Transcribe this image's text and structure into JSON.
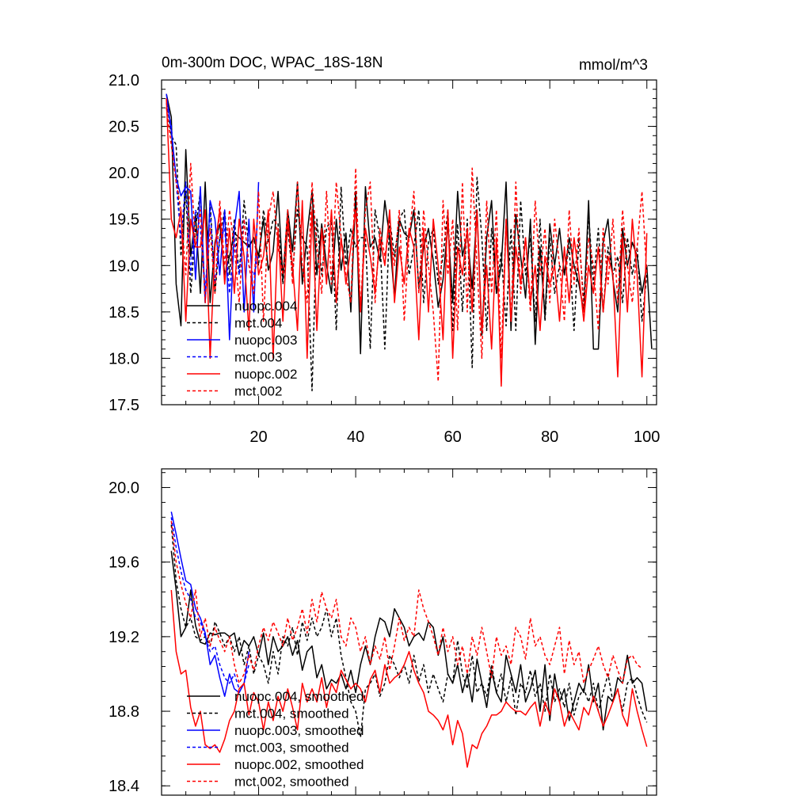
{
  "chart_data": [
    {
      "type": "line",
      "title": "0m-300m DOC, WPAC_18S-18N",
      "units": "mmol/m^3",
      "xlim": [
        0,
        102
      ],
      "ylim": [
        17.5,
        21.0
      ],
      "xticks": [
        20,
        40,
        60,
        80,
        100
      ],
      "yticks": [
        17.5,
        18.0,
        18.5,
        19.0,
        19.5,
        20.0,
        20.5,
        21.0
      ],
      "ytick_labels": [
        "17.5",
        "18.0",
        "18.5",
        "19.0",
        "19.5",
        "20.0",
        "20.5",
        "21.0"
      ],
      "legend": "bottom-left",
      "series": [
        {
          "name": "nuopc.004",
          "color": "#000000",
          "dash": false,
          "x_start": 1,
          "values": [
            20.85,
            20.6,
            18.8,
            18.35,
            20.25,
            19.1,
            19.55,
            18.7,
            19.9,
            18.6,
            19.25,
            19.45,
            18.9,
            19.1,
            19.35,
            19.3,
            19.25,
            19.2,
            19.3,
            19.1,
            19.5,
            18.95,
            19.15,
            19.8,
            18.85,
            19.6,
            19.15,
            19.9,
            18.8,
            19.35,
            19.8,
            18.9,
            19.45,
            19.0,
            18.7,
            19.5,
            18.95,
            19.35,
            18.5,
            19.8,
            18.05,
            19.85,
            19.2,
            19.3,
            19.05,
            19.7,
            19.3,
            18.65,
            19.5,
            19.35,
            19.3,
            19.6,
            18.75,
            19.2,
            19.4,
            19.05,
            18.55,
            18.85,
            19.45,
            18.6,
            19.8,
            19.1,
            19.35,
            18.75,
            19.6,
            18.25,
            19.3,
            19.7,
            18.7,
            19.0,
            19.9,
            18.3,
            19.55,
            19.1,
            18.65,
            19.5,
            18.15,
            19.2,
            18.45,
            19.45,
            19.0,
            19.4,
            18.9,
            19.3,
            19.0,
            18.8,
            18.5,
            19.7,
            18.1,
            18.1,
            19.25,
            19.5,
            18.85,
            18.5,
            19.4,
            19.0,
            19.25,
            19.1,
            18.7,
            19.0,
            18.1
          ]
        },
        {
          "name": "mct.004",
          "color": "#000000",
          "dash": true,
          "x_start": 1,
          "values": [
            20.8,
            20.4,
            20.3,
            19.1,
            19.8,
            18.7,
            19.4,
            19.8,
            18.6,
            19.7,
            18.7,
            19.3,
            19.6,
            18.9,
            19.5,
            18.9,
            19.7,
            19.2,
            19.3,
            19.0,
            19.6,
            19.25,
            19.5,
            19.45,
            18.8,
            19.4,
            18.9,
            19.6,
            19.3,
            19.2,
            17.65,
            19.5,
            18.9,
            19.4,
            19.5,
            18.3,
            19.85,
            19.0,
            19.4,
            19.2,
            19.3,
            19.3,
            18.1,
            19.6,
            19.3,
            18.1,
            19.5,
            19.1,
            19.5,
            19.6,
            18.9,
            19.2,
            19.6,
            18.6,
            19.25,
            19.4,
            18.8,
            19.1,
            19.6,
            18.3,
            19.45,
            18.5,
            19.5,
            17.9,
            19.95,
            19.3,
            18.3,
            19.4,
            18.7,
            19.15,
            18.35,
            19.4,
            18.3,
            19.7,
            18.9,
            19.3,
            18.4,
            19.5,
            18.4,
            19.3,
            18.7,
            19.0,
            18.9,
            19.2,
            18.3,
            19.3,
            18.6,
            19.55,
            18.8,
            19.4,
            18.5,
            19.2,
            18.9,
            19.1,
            18.6,
            19.3,
            18.9,
            19.2,
            18.4,
            18.9
          ]
        },
        {
          "name": "nuopc.003",
          "color": "#0000ff",
          "dash": false,
          "x_start": 1,
          "values": [
            20.85,
            20.45,
            19.95,
            19.75,
            19.85,
            19.8,
            18.85,
            19.85,
            18.6,
            19.7,
            19.5,
            18.9,
            19.6,
            18.2,
            19.4,
            19.8,
            18.5,
            19.5,
            18.5,
            19.9
          ]
        },
        {
          "name": "mct.003",
          "color": "#0000ff",
          "dash": true,
          "x_start": 1,
          "values": [
            20.75,
            20.5,
            19.9,
            19.3,
            19.9,
            18.9,
            19.6,
            19.4,
            18.7,
            19.6,
            18.8,
            19.3,
            19.4,
            18.7,
            19.3,
            18.9,
            19.5,
            19.0,
            18.9,
            19.1
          ]
        },
        {
          "name": "nuopc.002",
          "color": "#ff0000",
          "dash": false,
          "x_start": 1,
          "values": [
            20.8,
            19.5,
            19.3,
            19.6,
            18.4,
            19.5,
            19.2,
            19.2,
            19.6,
            18.0,
            19.2,
            19.6,
            18.8,
            19.4,
            18.7,
            19.5,
            19.1,
            18.3,
            19.5,
            18.9,
            19.1,
            19.6,
            18.0,
            19.4,
            18.4,
            19.5,
            19.0,
            18.3,
            19.7,
            18.0,
            19.6,
            18.3,
            19.4,
            18.8,
            19.6,
            18.6,
            19.3,
            18.8,
            19.2,
            19.6,
            18.5,
            19.4,
            19.1,
            18.7,
            19.3,
            19.0,
            19.6,
            18.6,
            19.2,
            18.8,
            19.4,
            19.2,
            18.2,
            19.4,
            18.5,
            19.5,
            19.0,
            18.2,
            19.6,
            18.0,
            19.2,
            18.9,
            19.4,
            18.5,
            19.6,
            18.3,
            19.0,
            18.1,
            19.3,
            17.7,
            19.5,
            18.4,
            19.2,
            18.8,
            19.3,
            18.6,
            19.0,
            18.3,
            19.1,
            18.8,
            19.0,
            18.4,
            19.2,
            18.6,
            19.3,
            18.9,
            18.4,
            19.0,
            18.7,
            19.2,
            18.5,
            19.1,
            18.9,
            17.8,
            19.3,
            18.5,
            19.5,
            18.9,
            17.8,
            19.35
          ]
        },
        {
          "name": "mct.002",
          "color": "#ff0000",
          "dash": true,
          "x_start": 1,
          "values": [
            20.7,
            20.3,
            19.9,
            19.6,
            18.9,
            20.1,
            19.2,
            19.6,
            18.6,
            19.4,
            18.7,
            19.7,
            19.0,
            19.6,
            19.2,
            18.6,
            19.5,
            19.0,
            18.7,
            19.8,
            18.4,
            19.5,
            19.8,
            19.2,
            18.9,
            19.6,
            18.8,
            19.9,
            19.0,
            18.6,
            19.9,
            19.2,
            18.7,
            19.8,
            18.8,
            19.9,
            19.3,
            18.9,
            18.6,
            20.05,
            18.5,
            19.6,
            19.9,
            18.6,
            19.4,
            19.1,
            19.4,
            19.0,
            19.6,
            18.4,
            19.3,
            19.8,
            18.7,
            19.6,
            19.0,
            18.5,
            17.75,
            19.7,
            18.9,
            19.5,
            18.3,
            19.9,
            18.5,
            20.05,
            19.0,
            18.0,
            19.7,
            18.7,
            19.6,
            18.0,
            19.5,
            18.4,
            19.9,
            18.7,
            19.3,
            18.5,
            19.7,
            18.9,
            19.4,
            18.6,
            19.5,
            19.0,
            18.4,
            19.6,
            18.8,
            19.4,
            18.5,
            19.3,
            19.0,
            18.3,
            19.4,
            18.8,
            19.5,
            18.6,
            19.6,
            19.0,
            18.6,
            19.2,
            19.8,
            18.9
          ]
        }
      ]
    },
    {
      "type": "line",
      "title": "",
      "xlim": [
        0,
        102
      ],
      "ylim": [
        18.35,
        20.1
      ],
      "xticks": [
        20,
        40,
        60,
        80,
        100
      ],
      "yticks": [
        18.4,
        18.8,
        19.2,
        19.6,
        20.0
      ],
      "ytick_labels": [
        "18.4",
        "18.8",
        "19.2",
        "19.6",
        "20.0"
      ],
      "legend": "bottom-left",
      "series": [
        {
          "name": "nuopc.004, smoothed",
          "color": "#000000",
          "dash": false,
          "x_start": 2,
          "values": [
            19.66,
            19.45,
            19.2,
            19.25,
            19.45,
            19.26,
            19.17,
            19.16,
            19.22,
            19.21,
            19.22,
            19.22,
            19.2,
            19.22,
            19.1,
            19.18,
            19.15,
            19.2,
            19.1,
            19.22,
            19.05,
            19.2,
            19.12,
            19.15,
            19.2,
            19.1,
            19.18,
            19.02,
            19.12,
            19.15,
            18.98,
            19.05,
            18.92,
            18.97,
            18.95,
            19.0,
            18.92,
            19.02,
            18.9,
            19.05,
            19.15,
            19.05,
            19.2,
            19.3,
            19.28,
            19.2,
            19.35,
            19.3,
            19.25,
            19.15,
            19.2,
            19.22,
            19.18,
            19.28,
            19.25,
            19.1,
            19.2,
            19.0,
            18.95,
            19.05,
            18.9,
            19.0,
            18.85,
            19.08,
            18.95,
            18.82,
            19.02,
            18.9,
            18.85,
            19.1,
            19.0,
            18.9,
            19.05,
            18.85,
            18.92,
            19.02,
            18.8,
            19.05,
            18.75,
            19.0,
            18.85,
            18.92,
            18.75,
            18.85,
            18.95,
            18.9,
            19.05,
            18.85,
            18.95,
            18.7,
            18.88,
            18.85,
            18.98,
            18.95,
            19.1,
            18.95,
            18.98,
            18.95,
            18.8
          ]
        },
        {
          "name": "mct.004, smoothed",
          "color": "#000000",
          "dash": true,
          "x_start": 2,
          "values": [
            19.8,
            19.5,
            19.35,
            19.25,
            19.3,
            19.2,
            19.18,
            19.2,
            19.15,
            19.28,
            19.22,
            19.15,
            19.2,
            19.12,
            19.2,
            19.05,
            19.15,
            19.0,
            19.1,
            19.05,
            18.95,
            19.12,
            19.0,
            19.2,
            19.15,
            19.25,
            19.1,
            19.28,
            19.18,
            19.3,
            19.2,
            19.25,
            19.35,
            19.2,
            19.3,
            19.1,
            18.98,
            18.85,
            18.8,
            18.66,
            18.92,
            18.95,
            19.0,
            18.88,
            18.95,
            19.1,
            19.05,
            18.98,
            19.05,
            18.95,
            19.1,
            18.96,
            19.05,
            18.9,
            19.0,
            18.92,
            18.85,
            19.0,
            18.95,
            19.18,
            19.0,
            18.92,
            19.1,
            18.9,
            18.95,
            18.88,
            19.05,
            18.9,
            19.0,
            18.85,
            18.98,
            18.78,
            18.95,
            18.9,
            19.02,
            18.88,
            18.95,
            18.8,
            19.0,
            18.85,
            18.92,
            18.82,
            18.95,
            18.78,
            18.88,
            18.92,
            18.85,
            18.95,
            18.8,
            18.9,
            19.0,
            18.85,
            18.92,
            18.8,
            18.95,
            18.98,
            18.88,
            18.8,
            18.74
          ]
        },
        {
          "name": "nuopc.003, smoothed",
          "color": "#0000ff",
          "dash": false,
          "x_start": 2,
          "values": [
            19.87,
            19.75,
            19.62,
            19.5,
            19.48,
            19.35,
            19.3,
            19.22,
            19.05,
            19.1,
            18.98,
            18.88,
            19.0,
            18.92,
            18.9,
            18.95,
            19.12
          ]
        },
        {
          "name": "mct.003, smoothed",
          "color": "#0000ff",
          "dash": true,
          "x_start": 2,
          "values": [
            19.84,
            19.68,
            19.55,
            19.45,
            19.4,
            19.3,
            19.28,
            19.2,
            19.12,
            19.15,
            19.05,
            18.98,
            18.95,
            19.0,
            18.92,
            18.95,
            19.05
          ]
        },
        {
          "name": "nuopc.002, smoothed",
          "color": "#ff0000",
          "dash": false,
          "x_start": 2,
          "values": [
            19.45,
            19.12,
            19.0,
            19.02,
            18.82,
            18.72,
            18.8,
            18.62,
            18.6,
            18.62,
            18.58,
            18.65,
            18.75,
            18.8,
            18.92,
            18.95,
            18.78,
            18.9,
            18.85,
            18.7,
            18.85,
            18.75,
            18.88,
            18.8,
            18.92,
            18.82,
            18.7,
            18.95,
            18.85,
            18.92,
            18.85,
            18.98,
            18.82,
            18.95,
            18.9,
            19.02,
            18.97,
            18.92,
            18.95,
            18.92,
            18.85,
            18.97,
            19.02,
            18.9,
            19.05,
            18.95,
            18.98,
            19.0,
            19.05,
            19.12,
            19.02,
            18.95,
            18.9,
            18.8,
            18.78,
            18.75,
            18.7,
            18.78,
            18.62,
            18.75,
            18.68,
            18.5,
            18.62,
            18.6,
            18.68,
            18.72,
            18.78,
            18.78,
            18.8,
            18.85,
            18.82,
            18.8,
            18.8,
            18.78,
            18.82,
            18.85,
            18.72,
            18.85,
            18.78,
            18.92,
            18.85,
            18.72,
            18.8,
            18.75,
            18.7,
            18.82,
            18.78,
            18.88,
            18.8,
            18.72,
            18.78,
            18.85,
            18.92,
            18.78,
            18.72,
            18.92,
            18.8,
            18.7,
            18.61
          ]
        },
        {
          "name": "mct.002, smoothed",
          "color": "#ff0000",
          "dash": true,
          "x_start": 2,
          "values": [
            19.82,
            19.6,
            19.48,
            19.38,
            19.3,
            19.45,
            19.2,
            19.3,
            19.15,
            19.25,
            19.18,
            19.12,
            19.2,
            19.05,
            18.95,
            19.0,
            19.1,
            19.02,
            19.15,
            19.25,
            19.18,
            19.28,
            19.22,
            19.15,
            19.3,
            19.18,
            19.25,
            19.35,
            19.22,
            19.4,
            19.28,
            19.44,
            19.35,
            19.3,
            19.4,
            19.2,
            19.15,
            19.3,
            19.25,
            19.12,
            19.2,
            19.05,
            19.15,
            19.08,
            19.2,
            19.02,
            19.15,
            19.3,
            19.18,
            19.25,
            19.2,
            19.45,
            19.35,
            19.28,
            19.2,
            19.1,
            19.25,
            19.12,
            19.2,
            19.05,
            19.15,
            19.0,
            19.2,
            19.1,
            19.25,
            19.12,
            18.98,
            19.2,
            19.1,
            19.15,
            19.05,
            19.25,
            19.2,
            19.08,
            19.3,
            19.15,
            19.2,
            19.1,
            19.05,
            19.15,
            19.25,
            19.0,
            19.18,
            19.05,
            19.12,
            18.95,
            19.02,
            19.08,
            19.15,
            19.05,
            18.98,
            19.1,
            19.02,
            18.95,
            19.08,
            19.1,
            19.05,
            19.03
          ]
        }
      ]
    }
  ]
}
